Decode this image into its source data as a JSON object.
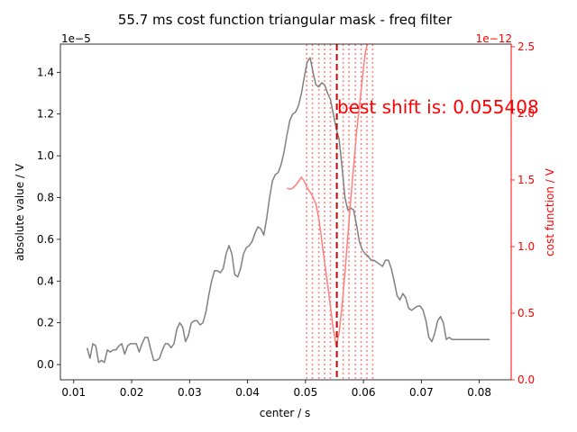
{
  "chart_data": {
    "type": "line",
    "title": "55.7 ms cost function triangular mask - freq filter",
    "xlabel": "center / s",
    "ylabel": "absolute value / V",
    "y2label": "cost function / V",
    "xlim": [
      0.0077,
      0.0855
    ],
    "ylim": [
      -0.073,
      1.535
    ],
    "y2lim": [
      0.0,
      2.52
    ],
    "y_offset_label": "1e−5",
    "y2_offset_label": "1e−12",
    "x_ticks": [
      0.01,
      0.02,
      0.03,
      0.04,
      0.05,
      0.06,
      0.07,
      0.08
    ],
    "x_tick_labels": [
      "0.01",
      "0.02",
      "0.03",
      "0.04",
      "0.05",
      "0.06",
      "0.07",
      "0.08"
    ],
    "y_ticks": [
      0.0,
      0.2,
      0.4,
      0.6,
      0.8,
      1.0,
      1.2,
      1.4
    ],
    "y_tick_labels": [
      "0.0",
      "0.2",
      "0.4",
      "0.6",
      "0.8",
      "1.0",
      "1.2",
      "1.4"
    ],
    "y2_ticks": [
      0.0,
      0.5,
      1.0,
      1.5,
      2.0,
      2.5
    ],
    "y2_tick_labels": [
      "0.0",
      "0.5",
      "1.0",
      "1.5",
      "2.0",
      "2.5"
    ],
    "grid": false,
    "annotation": "best shift is: 0.055408",
    "best_shift": 0.055408,
    "dotted_lines_x": [
      0.0502,
      0.0512,
      0.0523,
      0.0533,
      0.0543,
      0.0565,
      0.0575,
      0.0586,
      0.0596,
      0.0606,
      0.0616
    ],
    "colors": {
      "amplitude": "#808080",
      "cost": "#ff7f7f",
      "best": "#cc0000",
      "dotted": "#ff8080",
      "secondary_axis": "#ff0000"
    },
    "series": [
      {
        "axis": "left",
        "x": [
          0.0123,
          0.0128,
          0.0133,
          0.0138,
          0.0143,
          0.0148,
          0.0153,
          0.0158,
          0.0163,
          0.0168,
          0.0173,
          0.0178,
          0.0183,
          0.0188,
          0.0193,
          0.0198,
          0.0203,
          0.0208,
          0.0213,
          0.0218,
          0.0223,
          0.0228,
          0.0233,
          0.0238,
          0.0243,
          0.0248,
          0.0253,
          0.0258,
          0.0263,
          0.0268,
          0.0273,
          0.0278,
          0.0283,
          0.0288,
          0.0293,
          0.0298,
          0.0303,
          0.0308,
          0.0313,
          0.0318,
          0.0323,
          0.0328,
          0.0333,
          0.0338,
          0.0343,
          0.0348,
          0.0353,
          0.0358,
          0.0363,
          0.0368,
          0.0373,
          0.0378,
          0.0383,
          0.0388,
          0.0393,
          0.0398,
          0.0403,
          0.0408,
          0.0413,
          0.0418,
          0.0423,
          0.0428,
          0.0433,
          0.0438,
          0.0443,
          0.0448,
          0.0453,
          0.0458,
          0.0463,
          0.0468,
          0.0473,
          0.0478,
          0.0483,
          0.0488,
          0.0493,
          0.0498,
          0.0503,
          0.0508,
          0.0513,
          0.0518,
          0.0523,
          0.0528,
          0.0533,
          0.0538,
          0.0543,
          0.0548,
          0.0553,
          0.0558,
          0.0563,
          0.0568,
          0.0573,
          0.0578,
          0.0583,
          0.0588,
          0.0593,
          0.0598,
          0.0603,
          0.0608,
          0.0613,
          0.0618,
          0.0623,
          0.0628,
          0.0633,
          0.0638,
          0.0643,
          0.0648,
          0.0653,
          0.0658,
          0.0663,
          0.0668,
          0.0673,
          0.0678,
          0.0683,
          0.0688,
          0.0693,
          0.0698,
          0.0703,
          0.0708,
          0.0713,
          0.0718,
          0.0723,
          0.0728,
          0.0733,
          0.0738,
          0.0743,
          0.0748,
          0.0753,
          0.0758,
          0.0763,
          0.0768,
          0.0773,
          0.0778,
          0.0783,
          0.0788,
          0.0793,
          0.0798,
          0.0803,
          0.0808,
          0.0813,
          0.0818
        ],
        "values": [
          0.08,
          0.03,
          0.1,
          0.09,
          0.01,
          0.02,
          0.01,
          0.07,
          0.06,
          0.07,
          0.07,
          0.09,
          0.1,
          0.05,
          0.09,
          0.1,
          0.1,
          0.1,
          0.06,
          0.1,
          0.13,
          0.13,
          0.07,
          0.02,
          0.02,
          0.03,
          0.07,
          0.1,
          0.1,
          0.08,
          0.1,
          0.17,
          0.2,
          0.18,
          0.11,
          0.14,
          0.2,
          0.21,
          0.21,
          0.19,
          0.2,
          0.25,
          0.33,
          0.4,
          0.45,
          0.45,
          0.44,
          0.46,
          0.53,
          0.57,
          0.53,
          0.43,
          0.42,
          0.46,
          0.53,
          0.56,
          0.57,
          0.59,
          0.63,
          0.66,
          0.65,
          0.62,
          0.7,
          0.8,
          0.88,
          0.91,
          0.92,
          0.96,
          1.02,
          1.1,
          1.17,
          1.2,
          1.21,
          1.24,
          1.3,
          1.38,
          1.45,
          1.47,
          1.4,
          1.34,
          1.33,
          1.35,
          1.34,
          1.3,
          1.27,
          1.2,
          1.13,
          1.08,
          0.95,
          0.8,
          0.74,
          0.75,
          0.74,
          0.67,
          0.59,
          0.55,
          0.53,
          0.52,
          0.5,
          0.5,
          0.49,
          0.48,
          0.47,
          0.5,
          0.5,
          0.46,
          0.4,
          0.33,
          0.31,
          0.34,
          0.32,
          0.27,
          0.26,
          0.27,
          0.28,
          0.28,
          0.26,
          0.21,
          0.13,
          0.11,
          0.15,
          0.21,
          0.23,
          0.2,
          0.12,
          0.13,
          0.12,
          0.12,
          0.12,
          0.12,
          0.12,
          0.12,
          0.12,
          0.12,
          0.12,
          0.12,
          0.12,
          0.12,
          0.12,
          0.12
        ]
      },
      {
        "axis": "right",
        "x": [
          0.0468,
          0.0473,
          0.0478,
          0.0483,
          0.0488,
          0.0493,
          0.0498,
          0.0503,
          0.0508,
          0.0513,
          0.0518,
          0.0523,
          0.0528,
          0.0533,
          0.0538,
          0.0543,
          0.0548,
          0.0553,
          0.0558,
          0.0563,
          0.0568,
          0.0573,
          0.0578,
          0.0583,
          0.0588,
          0.0593,
          0.0598,
          0.0603,
          0.0608,
          0.0613
        ],
        "values": [
          1.44,
          1.43,
          1.44,
          1.46,
          1.49,
          1.52,
          1.49,
          1.44,
          1.41,
          1.37,
          1.32,
          1.21,
          1.05,
          0.88,
          0.72,
          0.55,
          0.38,
          0.25,
          0.35,
          0.55,
          0.8,
          1.08,
          1.35,
          1.6,
          1.85,
          2.05,
          2.25,
          2.45,
          2.55,
          2.65
        ]
      }
    ]
  }
}
